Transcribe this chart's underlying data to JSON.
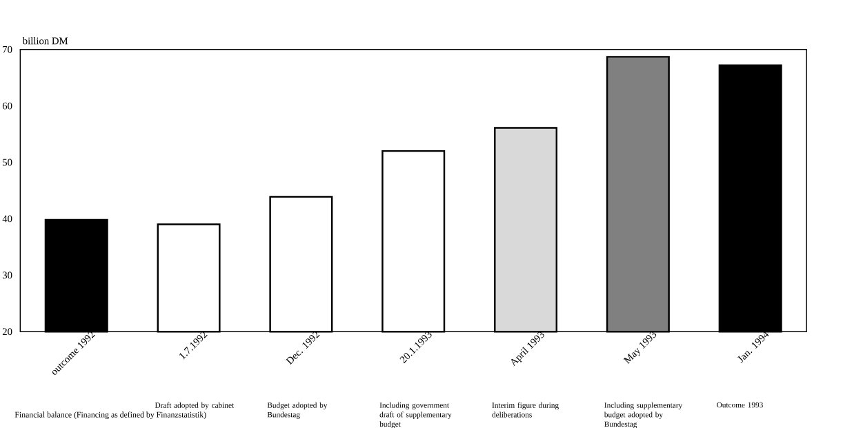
{
  "chart_data": {
    "type": "bar",
    "ylabel": "billion DM",
    "categories": [
      "outcome 1992",
      "1.7.1992",
      "Dec. 1992",
      "20.1.1993",
      "April 1993",
      "May 1993",
      "Jan. 1994"
    ],
    "values": [
      39.8,
      39.0,
      43.9,
      52.0,
      56.1,
      68.7,
      67.2
    ],
    "colors": [
      "#000000",
      "#ffffff",
      "#ffffff",
      "#ffffff",
      "#d9d9d9",
      "#808080",
      "#000000"
    ],
    "ylim": [
      20,
      70
    ],
    "yticks": [
      20,
      30,
      40,
      50,
      60,
      70
    ],
    "annotations": [
      "Draft adopted by cabinet",
      "Budget adopted by Bundestag",
      "Including government draft of supplementary budget",
      "Interim figure during deliberations",
      "Including supplementary budget adopted by Bundestag",
      "Outcome 1993",
      "Financial balance (Financing as defined by Finanzstatistik)"
    ]
  }
}
